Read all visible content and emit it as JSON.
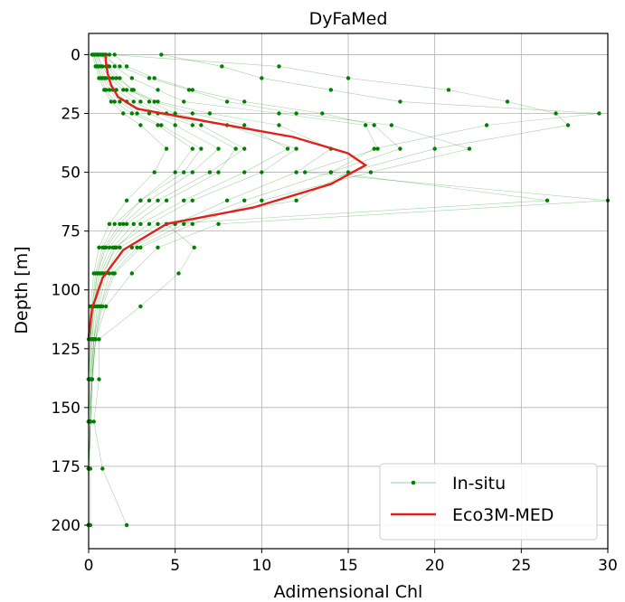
{
  "chart_data": {
    "type": "line",
    "title": "DyFaMed",
    "xlabel": "Adimensional Chl",
    "ylabel": "Depth [m]",
    "xlim": [
      0,
      30
    ],
    "ylim": [
      210,
      -9
    ],
    "y_inverted": true,
    "grid": true,
    "legend_position": "lower-right",
    "x_ticks": [
      "0",
      "5",
      "10",
      "15",
      "20",
      "25",
      "30"
    ],
    "y_ticks": [
      "0",
      "25",
      "50",
      "75",
      "100",
      "125",
      "150",
      "175",
      "200"
    ],
    "x_tick_values": [
      0,
      5,
      10,
      15,
      20,
      25,
      30
    ],
    "y_tick_values": [
      0,
      25,
      50,
      75,
      100,
      125,
      150,
      175,
      200
    ],
    "colors": {
      "insitu": "#008000",
      "model": "#e0201b",
      "grid": "#b0b0b0"
    },
    "series": [
      {
        "name": "Eco3M-MED",
        "style": "line",
        "depth": [
          0,
          3,
          8,
          13,
          18,
          23,
          28,
          35,
          42,
          47,
          55,
          65,
          72,
          83,
          95,
          108,
          120
        ],
        "chl": [
          1.0,
          1.0,
          1.1,
          1.3,
          1.7,
          2.8,
          6.5,
          11.8,
          15.0,
          16.0,
          14.0,
          9.5,
          4.5,
          2.0,
          0.8,
          0.2,
          0.0
        ]
      },
      {
        "name": "In-situ",
        "style": "markers-lines",
        "profiles": [
          {
            "depth": [
              0,
              5,
              10,
              15,
              20,
              25,
              30,
              40,
              50,
              62,
              72,
              82,
              93,
              107,
              121,
              138,
              156,
              176,
              200
            ],
            "chl": [
              1.0,
              1.5,
              2.5,
              4.0,
              5.5,
              11.0,
              16.0,
              16.7,
              12.5,
              30.0,
              7.5,
              4.0,
              2.5,
              1.0,
              0.4,
              0.2,
              0.1,
              0.1,
              0.1
            ]
          },
          {
            "depth": [
              0,
              5,
              10,
              15,
              20,
              25,
              30,
              40,
              50,
              62,
              72,
              82,
              93,
              107,
              121,
              138,
              156,
              176,
              200
            ],
            "chl": [
              4.2,
              7.7,
              10.0,
              14.0,
              18.0,
              29.5,
              23.0,
              16.5,
              14.0,
              26.5,
              4.5,
              6.1,
              5.2,
              3.0,
              0.6,
              0.6,
              0.3,
              0.8,
              2.2
            ]
          },
          {
            "depth": [
              0,
              5,
              10,
              15,
              20,
              25,
              30,
              40,
              50,
              62,
              72,
              82,
              93,
              107,
              121,
              138,
              156,
              176,
              200
            ],
            "chl": [
              0.8,
              1.2,
              1.8,
              2.5,
              3.5,
              5.0,
              8.0,
              12.0,
              10.0,
              6.0,
              3.5,
              1.5,
              0.9,
              0.5,
              0.3,
              0.1,
              0.1,
              0.0,
              0.0
            ]
          },
          {
            "depth": [
              0,
              5,
              10,
              15,
              20,
              25,
              30,
              40,
              50,
              62,
              72,
              82,
              93,
              107,
              121,
              138,
              156,
              176,
              200
            ],
            "chl": [
              0.5,
              0.8,
              1.2,
              2.0,
              3.0,
              4.5,
              6.5,
              9.0,
              7.0,
              4.0,
              2.2,
              1.2,
              0.6,
              0.3,
              0.2,
              0.1,
              0.0,
              0.0,
              0.0
            ]
          },
          {
            "depth": [
              0,
              5,
              10,
              15,
              20,
              25,
              30,
              40,
              50,
              62,
              72,
              82,
              93,
              107,
              121,
              138,
              156,
              176,
              200
            ],
            "chl": [
              1.2,
              11.0,
              15.0,
              20.8,
              24.2,
              27.0,
              27.7,
              20.0,
              15.0,
              12.0,
              4.0,
              1.8,
              1.0,
              0.6,
              0.3,
              0.2,
              0.1,
              0.0,
              0.0
            ]
          },
          {
            "depth": [
              0,
              5,
              10,
              15,
              20,
              25,
              30,
              40,
              50,
              62,
              72,
              82,
              93,
              107,
              121,
              138,
              156,
              176,
              200
            ],
            "chl": [
              0.3,
              0.5,
              0.7,
              1.0,
              1.5,
              2.5,
              4.0,
              6.0,
              5.0,
              3.0,
              1.5,
              0.8,
              0.4,
              0.2,
              0.1,
              0.0,
              0.0,
              0.0,
              0.0
            ]
          },
          {
            "depth": [
              0,
              5,
              10,
              15,
              20,
              25,
              30,
              40,
              50,
              62,
              72,
              82,
              93,
              107,
              121,
              138,
              156,
              176,
              200
            ],
            "chl": [
              0.9,
              1.0,
              1.4,
              2.2,
              4.0,
              7.0,
              11.0,
              14.0,
              12.0,
              8.0,
              5.0,
              2.5,
              1.2,
              0.7,
              0.4,
              0.2,
              0.1,
              0.0,
              0.0
            ]
          },
          {
            "depth": [
              0,
              5,
              10,
              15,
              20,
              25,
              30,
              40,
              50,
              62,
              72,
              82,
              93,
              107,
              121,
              138,
              156,
              176,
              200
            ],
            "chl": [
              0.4,
              0.6,
              0.9,
              1.4,
              2.2,
              3.5,
              5.0,
              7.5,
              6.0,
              3.5,
              2.0,
              1.0,
              0.5,
              0.3,
              0.1,
              0.0,
              0.0,
              0.0,
              0.0
            ]
          },
          {
            "depth": [
              0,
              5,
              10,
              15,
              20,
              25,
              30,
              40,
              50,
              62,
              72,
              82,
              93,
              107,
              121,
              138,
              156,
              176,
              200
            ],
            "chl": [
              0.6,
              1.8,
              3.5,
              5.8,
              8.0,
              12.0,
              17.5,
              22.0,
              16.3,
              10.0,
              6.0,
              3.0,
              1.5,
              0.8,
              0.4,
              0.2,
              0.1,
              0.0,
              0.0
            ]
          },
          {
            "depth": [
              0,
              5,
              10,
              15,
              20,
              25,
              30,
              40,
              50,
              62,
              72,
              82,
              93,
              107,
              121,
              138,
              156,
              176,
              200
            ],
            "chl": [
              0.2,
              0.4,
              0.6,
              0.9,
              1.3,
              2.0,
              3.0,
              4.5,
              3.8,
              2.2,
              1.2,
              0.6,
              0.3,
              0.1,
              0.0,
              0.0,
              0.0,
              0.0,
              0.0
            ]
          },
          {
            "depth": [
              0,
              5,
              10,
              15,
              20,
              25,
              30,
              40,
              50,
              62,
              72,
              82,
              93,
              107,
              121,
              138,
              156,
              176,
              200
            ],
            "chl": [
              1.5,
              2.2,
              3.8,
              6.0,
              9.0,
              13.5,
              16.5,
              18.0,
              14.0,
              9.0,
              5.5,
              2.8,
              1.4,
              0.7,
              0.3,
              0.2,
              0.1,
              0.0,
              0.0
            ]
          },
          {
            "depth": [
              0,
              5,
              10,
              15,
              20,
              25,
              30,
              40,
              50,
              62,
              72,
              82,
              93,
              107,
              121,
              138,
              156,
              176,
              200
            ],
            "chl": [
              0.3,
              0.5,
              0.8,
              1.2,
              1.8,
              2.8,
              4.2,
              6.5,
              5.5,
              3.0,
              1.8,
              0.9,
              0.5,
              0.2,
              0.1,
              0.0,
              0.0,
              0.0,
              0.0
            ]
          },
          {
            "depth": [
              0,
              5,
              10,
              15,
              20,
              25,
              30,
              40,
              50,
              62,
              72,
              82,
              93,
              107,
              121,
              138,
              156,
              176,
              200
            ],
            "chl": [
              0.7,
              1.1,
              1.6,
              2.6,
              3.8,
              6.0,
              9.0,
              11.5,
              9.0,
              5.5,
              3.0,
              1.6,
              0.8,
              0.4,
              0.2,
              0.1,
              0.0,
              0.0,
              0.0
            ]
          },
          {
            "depth": [
              0,
              5,
              10,
              15,
              20,
              25,
              30,
              40,
              50,
              62,
              72,
              82,
              93,
              107,
              121,
              138,
              156,
              176,
              200
            ],
            "chl": [
              0.5,
              0.7,
              1.0,
              1.6,
              2.6,
              4.0,
              6.0,
              8.5,
              7.5,
              4.5,
              2.6,
              1.4,
              0.7,
              0.3,
              0.1,
              0.0,
              0.0,
              0.0,
              0.0
            ]
          }
        ]
      }
    ]
  }
}
